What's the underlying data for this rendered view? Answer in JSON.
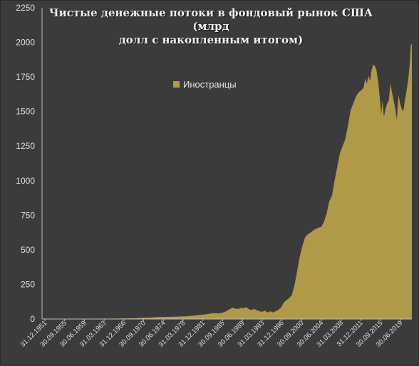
{
  "chart_data": {
    "type": "area",
    "title_lines": [
      "Чистые денежные потоки в фондовый рынок США (млрд",
      "долл с накопленным итогом)"
    ],
    "ylim": [
      0,
      2250
    ],
    "y_ticks": [
      "0",
      "250",
      "500",
      "750",
      "1000",
      "1250",
      "1500",
      "1750",
      "2000",
      "2250"
    ],
    "x_tick_labels": [
      "31.12.1951",
      "30.09.1955",
      "30.06.1959",
      "31.03.1963",
      "31.12.1966",
      "30.09.1970",
      "30.06.1974",
      "31.03.1978",
      "31.12.1981",
      "30.09.1985",
      "30.06.1989",
      "31.03.1993",
      "31.12.1996",
      "30.09.2000",
      "30.06.2004",
      "31.03.2008",
      "31.12.2011",
      "30.09.2015",
      "30.06.2019"
    ],
    "x_range": [
      1951.99,
      2020.9
    ],
    "grid": false,
    "legend_position": "top-left of plot area",
    "colors": {
      "series": "#b09a4a",
      "background": "#3b3b3b",
      "axis": "#bdbdbd"
    },
    "series": [
      {
        "name": "Иностранцы",
        "points": [
          [
            1952.0,
            0
          ],
          [
            1956.0,
            1
          ],
          [
            1960.0,
            2
          ],
          [
            1966.0,
            3
          ],
          [
            1969.0,
            5
          ],
          [
            1970.5,
            8
          ],
          [
            1972.0,
            10
          ],
          [
            1973.5,
            14
          ],
          [
            1976.0,
            16
          ],
          [
            1979.0,
            20
          ],
          [
            1981.0,
            28
          ],
          [
            1982.5,
            34
          ],
          [
            1984.0,
            42
          ],
          [
            1985.0,
            40
          ],
          [
            1986.0,
            50
          ],
          [
            1987.0,
            72
          ],
          [
            1987.5,
            82
          ],
          [
            1988.0,
            75
          ],
          [
            1988.5,
            72
          ],
          [
            1989.0,
            80
          ],
          [
            1989.5,
            78
          ],
          [
            1990.0,
            86
          ],
          [
            1990.5,
            72
          ],
          [
            1991.0,
            64
          ],
          [
            1991.5,
            74
          ],
          [
            1992.0,
            64
          ],
          [
            1992.5,
            56
          ],
          [
            1993.0,
            52
          ],
          [
            1993.5,
            60
          ],
          [
            1994.0,
            48
          ],
          [
            1994.5,
            56
          ],
          [
            1995.0,
            48
          ],
          [
            1995.5,
            56
          ],
          [
            1996.0,
            65
          ],
          [
            1996.5,
            82
          ],
          [
            1997.0,
            118
          ],
          [
            1997.5,
            135
          ],
          [
            1998.0,
            150
          ],
          [
            1998.5,
            170
          ],
          [
            1999.0,
            240
          ],
          [
            1999.5,
            340
          ],
          [
            2000.0,
            450
          ],
          [
            2000.5,
            530
          ],
          [
            2001.0,
            590
          ],
          [
            2001.5,
            612
          ],
          [
            2002.0,
            625
          ],
          [
            2002.5,
            640
          ],
          [
            2003.0,
            652
          ],
          [
            2003.5,
            660
          ],
          [
            2004.0,
            665
          ],
          [
            2004.5,
            700
          ],
          [
            2005.0,
            760
          ],
          [
            2005.5,
            850
          ],
          [
            2006.0,
            890
          ],
          [
            2006.5,
            1000
          ],
          [
            2007.0,
            1100
          ],
          [
            2007.5,
            1200
          ],
          [
            2008.0,
            1250
          ],
          [
            2008.5,
            1300
          ],
          [
            2009.0,
            1400
          ],
          [
            2009.5,
            1510
          ],
          [
            2010.0,
            1560
          ],
          [
            2010.5,
            1610
          ],
          [
            2011.0,
            1640
          ],
          [
            2011.5,
            1655
          ],
          [
            2011.9,
            1670
          ],
          [
            2012.2,
            1740
          ],
          [
            2012.5,
            1700
          ],
          [
            2012.8,
            1760
          ],
          [
            2013.1,
            1720
          ],
          [
            2013.4,
            1800
          ],
          [
            2013.7,
            1840
          ],
          [
            2014.0,
            1830
          ],
          [
            2014.3,
            1800
          ],
          [
            2014.6,
            1720
          ],
          [
            2014.9,
            1610
          ],
          [
            2015.2,
            1480
          ],
          [
            2015.4,
            1580
          ],
          [
            2015.7,
            1460
          ],
          [
            2016.0,
            1520
          ],
          [
            2016.3,
            1560
          ],
          [
            2016.6,
            1580
          ],
          [
            2016.9,
            1700
          ],
          [
            2017.2,
            1640
          ],
          [
            2017.5,
            1580
          ],
          [
            2017.8,
            1520
          ],
          [
            2018.1,
            1440
          ],
          [
            2018.4,
            1620
          ],
          [
            2018.7,
            1560
          ],
          [
            2019.0,
            1520
          ],
          [
            2019.3,
            1500
          ],
          [
            2019.6,
            1580
          ],
          [
            2019.9,
            1650
          ],
          [
            2020.2,
            1720
          ],
          [
            2020.5,
            1840
          ],
          [
            2020.7,
            1980
          ],
          [
            2020.9,
            1990
          ]
        ]
      }
    ]
  }
}
